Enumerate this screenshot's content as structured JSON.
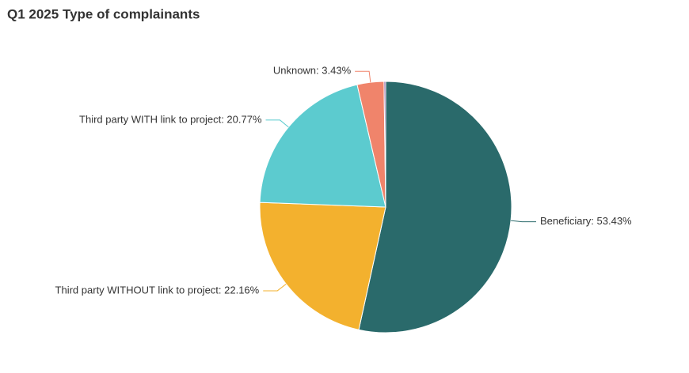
{
  "chart_data": {
    "type": "pie",
    "title": "Q1 2025 Type of complainants",
    "value_labels": [
      "Beneficiary: 53.43%",
      "Third party WITHOUT link to project: 22.16%",
      "Third party WITH link to project: 20.77%",
      "Unknown: 3.43%",
      null
    ],
    "values": [
      53.43,
      22.16,
      20.77,
      3.43,
      0.21
    ],
    "colors": [
      "#2a6a6b",
      "#f3b12e",
      "#5ccbcf",
      "#f0846b",
      "#8e5ea2"
    ]
  }
}
